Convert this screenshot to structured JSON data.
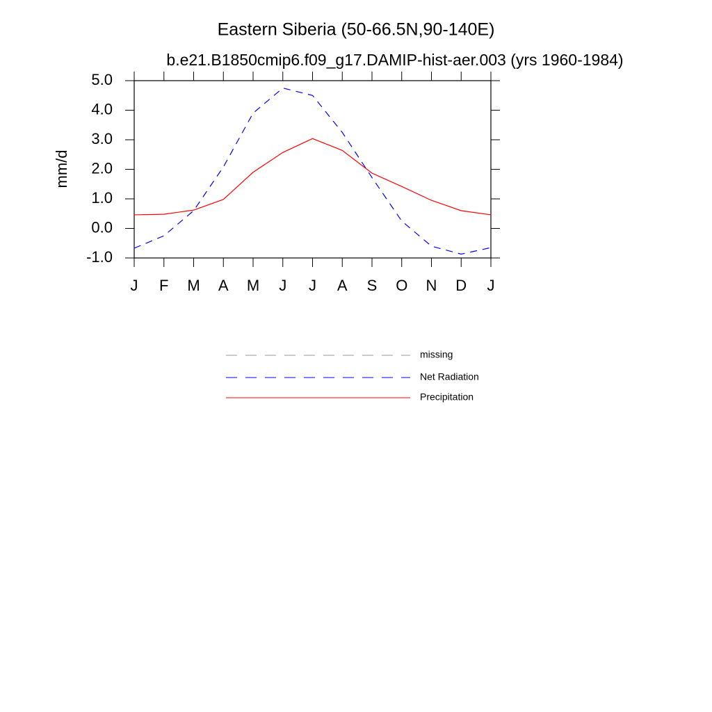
{
  "chart_data": {
    "type": "line",
    "title": "Eastern Siberia (50-66.5N,90-140E)",
    "subtitle": "b.e21.B1850cmip6.f09_g17.DAMIP-hist-aer.003 (yrs 1960-1984)",
    "y_label": "mm/d",
    "categories": [
      "J",
      "F",
      "M",
      "A",
      "M",
      "J",
      "J",
      "A",
      "S",
      "O",
      "N",
      "D",
      "J"
    ],
    "ylim": [
      -1.0,
      5.0
    ],
    "yticks": [
      {
        "value": 5.0,
        "label": "5.0"
      },
      {
        "value": 4.0,
        "label": "4.0"
      },
      {
        "value": 3.0,
        "label": "3.0"
      },
      {
        "value": 2.0,
        "label": "2.0"
      },
      {
        "value": 1.0,
        "label": "1.0"
      },
      {
        "value": 0.0,
        "label": "0.0"
      },
      {
        "value": -1.0,
        "label": "-1.0"
      }
    ],
    "series": [
      {
        "name": "missing",
        "color": "#999999",
        "dashed": true,
        "values": [
          null,
          null,
          null,
          null,
          null,
          null,
          null,
          null,
          null,
          null,
          null,
          null,
          null
        ]
      },
      {
        "name": "Net Radiation",
        "color": "#0000ff",
        "dashed": true,
        "values": [
          -0.67,
          -0.25,
          0.6,
          2.08,
          3.9,
          4.75,
          4.5,
          3.25,
          1.72,
          0.25,
          -0.6,
          -0.87,
          -0.65
        ]
      },
      {
        "name": "Precipitation",
        "color": "#ff0000",
        "dashed": false,
        "values": [
          0.46,
          0.48,
          0.62,
          0.98,
          1.9,
          2.57,
          3.04,
          2.64,
          1.87,
          1.42,
          0.95,
          0.6,
          0.46
        ]
      }
    ]
  }
}
